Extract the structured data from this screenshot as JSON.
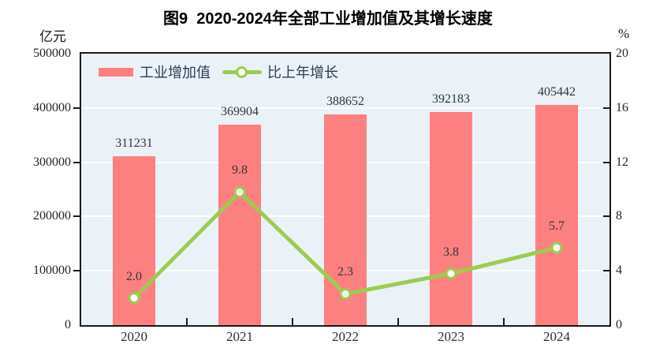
{
  "chart_data": {
    "type": "bar+line",
    "title": "图9  2020-2024年全部工业增加值及其增长速度",
    "categories": [
      "2020",
      "2021",
      "2022",
      "2023",
      "2024"
    ],
    "series": [
      {
        "name": "工业增加值",
        "chart": "bar",
        "axis": "left",
        "unit": "亿元",
        "values": [
          311231,
          369904,
          388652,
          392183,
          405442
        ],
        "labels": [
          "311231",
          "369904",
          "388652",
          "392183",
          "405442"
        ],
        "color": "#fc8080"
      },
      {
        "name": "比上年增长",
        "chart": "line",
        "axis": "right",
        "unit": "%",
        "values": [
          2.0,
          9.8,
          2.3,
          3.8,
          5.7
        ],
        "labels": [
          "2.0",
          "9.8",
          "2.3",
          "3.8",
          "5.7"
        ],
        "color": "#9acd4e"
      }
    ],
    "left_axis": {
      "unit": "亿元",
      "range": [
        0,
        500000
      ],
      "tick_values": [
        0,
        100000,
        200000,
        300000,
        400000,
        500000
      ],
      "tick_labels": [
        "0",
        "100000",
        "200000",
        "300000",
        "400000",
        "500000"
      ]
    },
    "right_axis": {
      "unit": "%",
      "range": [
        0,
        20
      ],
      "tick_values": [
        0,
        4,
        8,
        12,
        16,
        20
      ],
      "tick_labels": [
        "0",
        "4",
        "8",
        "12",
        "16",
        "20"
      ]
    },
    "grid": true,
    "legend_position": "top-left",
    "colors": {
      "bar": "#fc8080",
      "line": "#9acd4e",
      "marker_fill": "#ffffff",
      "plot_bg": "#eaf2f7",
      "grid": "#ffffff",
      "axis": "#1a1a1a"
    }
  }
}
